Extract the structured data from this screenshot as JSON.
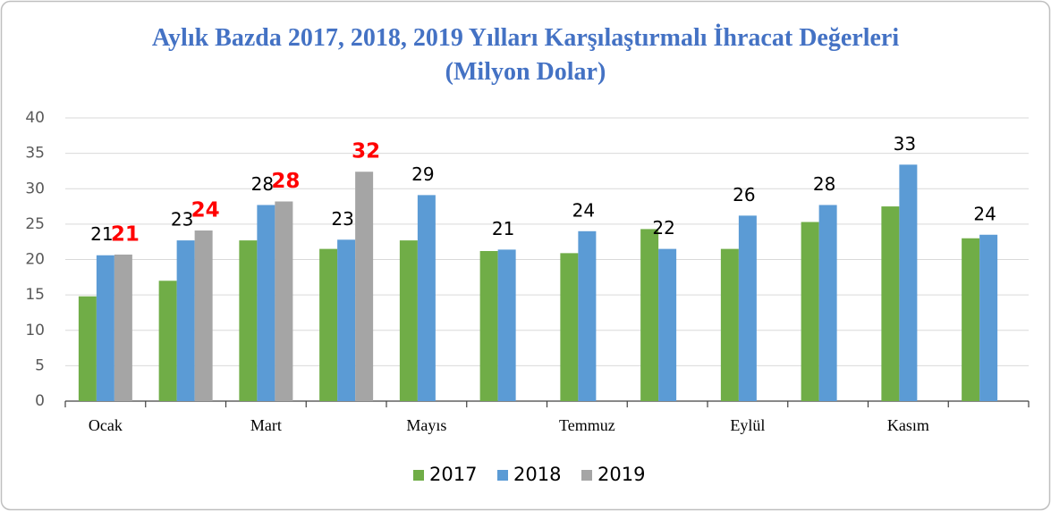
{
  "chart_data": {
    "type": "bar",
    "title": "Aylık Bazda 2017, 2018, 2019 Yılları Karşılaştırmalı İhracat Değerleri (Milyon Dolar)",
    "categories": [
      "Ocak",
      null,
      "Mart",
      null,
      "Mayıs",
      null,
      "Temmuz",
      null,
      "Eylül",
      null,
      "Kasım",
      null
    ],
    "series": [
      {
        "name": "2017",
        "color": "#70ad47",
        "values": [
          14.8,
          17,
          22.7,
          21.5,
          22.7,
          21.2,
          20.9,
          24.3,
          21.5,
          25.3,
          27.5,
          23
        ]
      },
      {
        "name": "2018",
        "color": "#5b9bd5",
        "values": [
          20.6,
          22.7,
          27.7,
          22.8,
          29.1,
          21.4,
          24,
          21.5,
          26.2,
          27.7,
          33.4,
          23.5
        ],
        "value_labels": [
          "21",
          "23",
          "28",
          "23",
          "29",
          "21",
          "24",
          "22",
          "26",
          "28",
          "33",
          "24"
        ]
      },
      {
        "name": "2019",
        "color": "#a5a5a5",
        "values": [
          20.7,
          24.1,
          28.2,
          32.4,
          null,
          null,
          null,
          null,
          null,
          null,
          null,
          null
        ],
        "value_labels": [
          "21",
          "24",
          "28",
          "32",
          null,
          null,
          null,
          null,
          null,
          null,
          null,
          null
        ]
      }
    ],
    "ylim": [
      0,
      40
    ],
    "yticks": [
      0,
      5,
      10,
      15,
      20,
      25,
      30,
      35,
      40
    ],
    "grid": true,
    "legend": "bottom"
  }
}
